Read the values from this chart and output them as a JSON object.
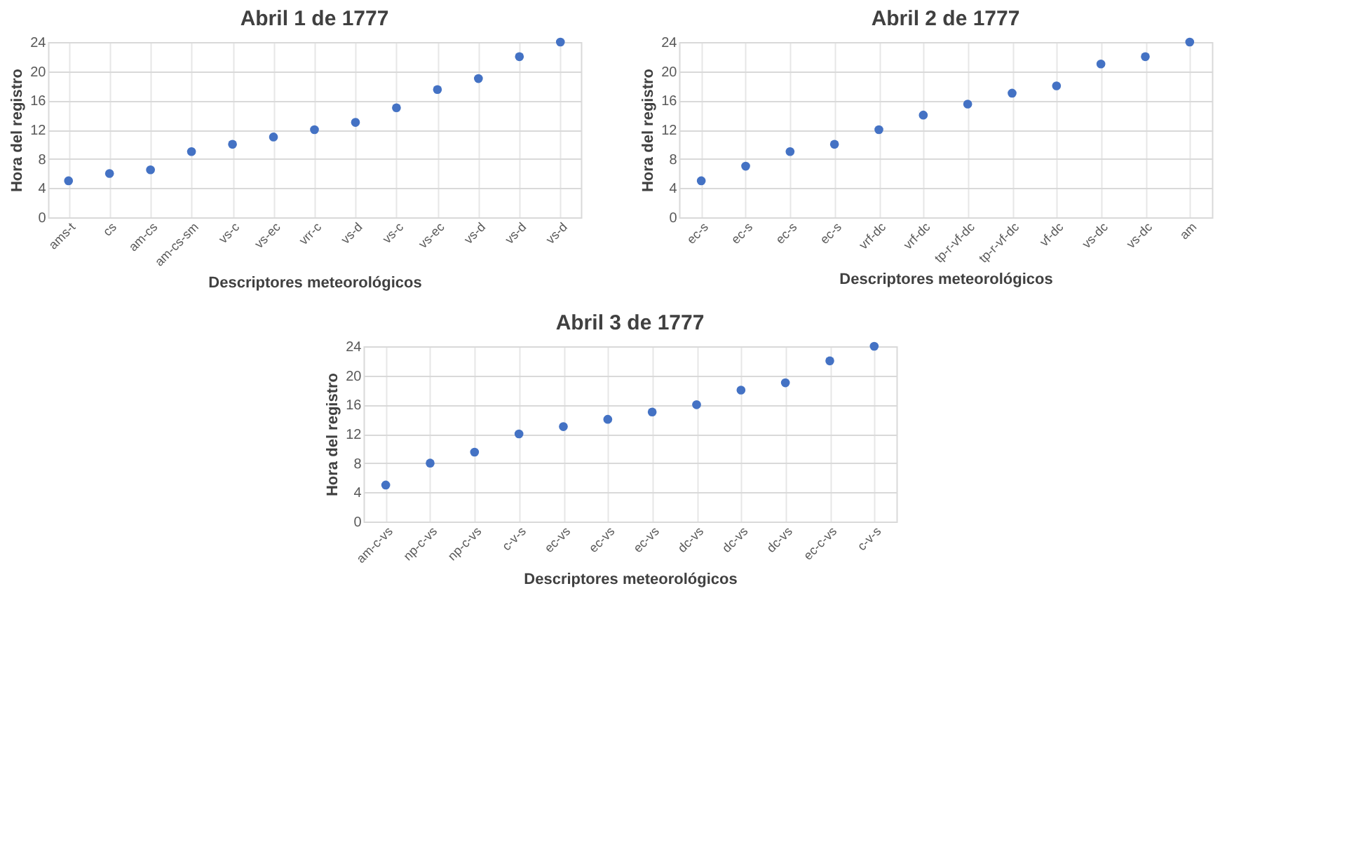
{
  "chart_data": [
    {
      "type": "scatter",
      "title": "Abril 1 de 1777",
      "xlabel": "Descriptores meteorológicos",
      "ylabel": "Hora  del registro",
      "categories": [
        "ams-t",
        "cs",
        "am-cs",
        "am-cs-sm",
        "vs-c",
        "vs-ec",
        "vrr-c",
        "vs-d",
        "vs-c",
        "vs-ec",
        "vs-d",
        "vs-d",
        "vs-d"
      ],
      "series": [
        {
          "color": "#4472c4",
          "values": [
            5,
            6,
            6.5,
            9,
            10,
            11,
            12,
            13,
            15,
            17.5,
            19,
            22,
            24
          ]
        }
      ],
      "ylim": [
        0,
        24
      ],
      "yticks": [
        0,
        4,
        8,
        12,
        16,
        20,
        24
      ],
      "grid": true,
      "marker": "circle"
    },
    {
      "type": "scatter",
      "title": "Abril 2 de 1777",
      "xlabel": "Descriptores meteorológicos",
      "ylabel": "Hora  del registro",
      "categories": [
        "ec-s",
        "ec-s",
        "ec-s",
        "ec-s",
        "vrf-dc",
        "vrf-dc",
        "tp-r-vf-dc",
        "tp-r-vf-dc",
        "vf-dc",
        "vs-dc",
        "vs-dc",
        "am"
      ],
      "series": [
        {
          "color": "#4472c4",
          "values": [
            5,
            7,
            9,
            10,
            12,
            14,
            15.5,
            17,
            18,
            21,
            22,
            24
          ]
        }
      ],
      "ylim": [
        0,
        24
      ],
      "yticks": [
        0,
        4,
        8,
        12,
        16,
        20,
        24
      ],
      "grid": true,
      "marker": "circle"
    },
    {
      "type": "scatter",
      "title": "Abril 3 de 1777",
      "xlabel": "Descriptores meteorológicos",
      "ylabel": "Hora  del registro",
      "categories": [
        "am-c-vs",
        "np-c-vs",
        "np-c-vs",
        "c-v-s",
        "ec-vs",
        "ec-vs",
        "ec-vs",
        "dc-vs",
        "dc-vs",
        "dc-vs",
        "ec-c-vs",
        "c-v-s"
      ],
      "series": [
        {
          "color": "#4472c4",
          "values": [
            5,
            8,
            9.5,
            12,
            13,
            14,
            15,
            16,
            18,
            19,
            22,
            24
          ]
        }
      ],
      "ylim": [
        0,
        24
      ],
      "yticks": [
        0,
        4,
        8,
        12,
        16,
        20,
        24
      ],
      "grid": true,
      "marker": "circle"
    }
  ]
}
